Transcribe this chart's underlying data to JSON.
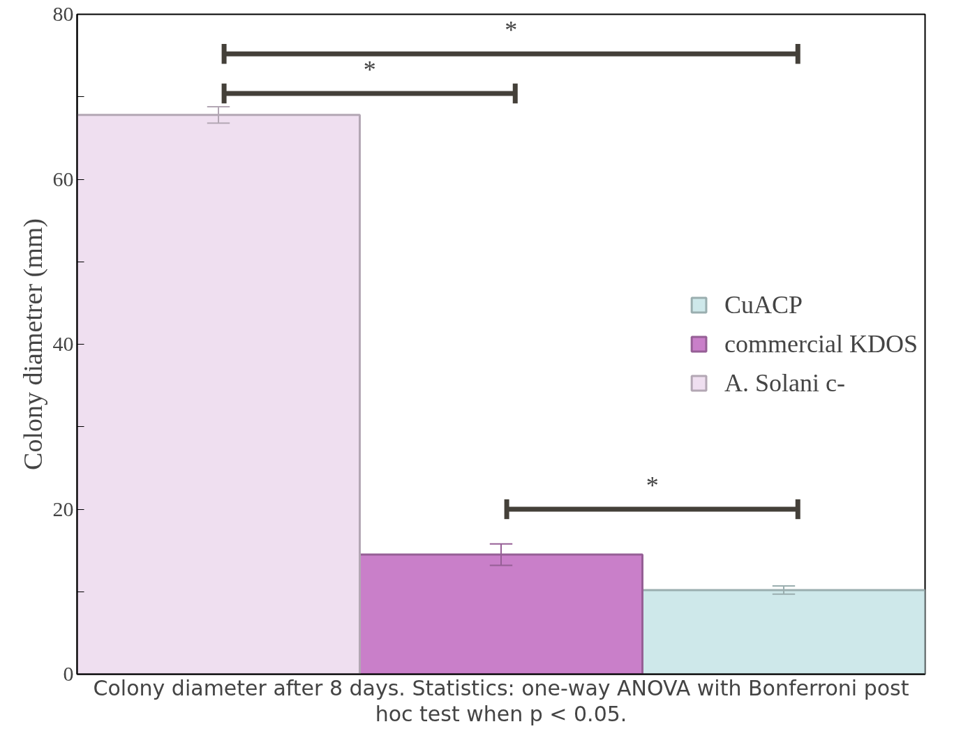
{
  "chart_data": {
    "type": "bar",
    "ylabel": "Colony diametrer (mm)",
    "categories": [
      null,
      null,
      null
    ],
    "series": [
      {
        "name": "CuACP",
        "color": "#cee8ea",
        "values": [
          null,
          null,
          10.2
        ],
        "errors": [
          null,
          null,
          0.5
        ]
      },
      {
        "name": "commercial KDOS",
        "color": "#c97fc9",
        "values": [
          null,
          14.5,
          null
        ],
        "errors": [
          null,
          1.3,
          null
        ]
      },
      {
        "name": "A. Solani c-",
        "color": "#efdff0",
        "values": [
          67.8,
          null,
          null
        ],
        "errors": [
          1.0,
          null,
          null
        ]
      }
    ],
    "ylim": [
      0,
      80
    ],
    "yticks": [
      0,
      {
        "value": 10,
        "label": null
      },
      20,
      {
        "value": 30,
        "label": null
      },
      40,
      {
        "value": 50,
        "label": null
      },
      60,
      {
        "value": 70,
        "label": null
      },
      80
    ],
    "grid": false,
    "legend": "right",
    "annotations": [
      "*",
      "*",
      "*",
      "Colony diameter after 8 days. Statistics: one-way ANOVA with Bonferroni post hoc test when p < 0.05."
    ]
  }
}
